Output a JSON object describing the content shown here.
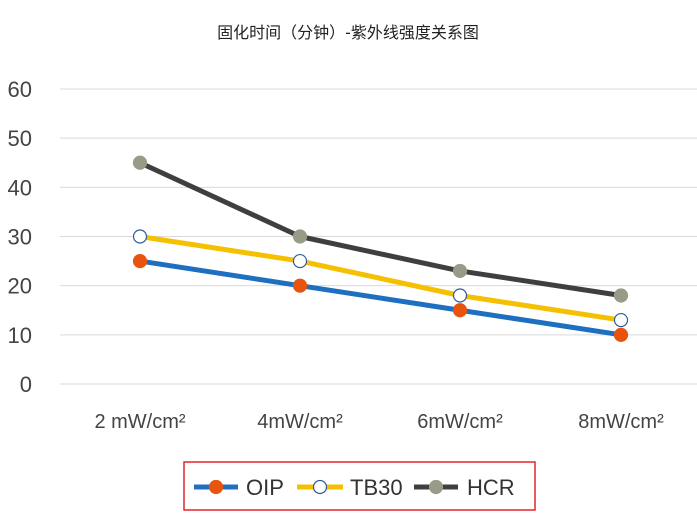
{
  "chart_data": {
    "type": "line",
    "title": "固化时间（分钟）-紫外线强度关系图",
    "xlabel": "",
    "ylabel": "",
    "categories": [
      "2 mW/cm²",
      "4mW/cm²",
      "6mW/cm²",
      "8mW/cm²"
    ],
    "ylim": [
      0,
      60
    ],
    "yticks": [
      0,
      10,
      20,
      30,
      40,
      50,
      60
    ],
    "grid": true,
    "legend_position": "bottom",
    "series": [
      {
        "name": "OIP",
        "values": [
          25,
          20,
          15,
          10
        ],
        "color": "#1f6fc1",
        "marker_fill": "#e8530e",
        "marker_stroke": "#e8530e"
      },
      {
        "name": "TB30",
        "values": [
          30,
          25,
          18,
          13
        ],
        "color": "#f5c000",
        "marker_fill": "#ffffff",
        "marker_stroke": "#2e5b9a"
      },
      {
        "name": "HCR",
        "values": [
          45,
          30,
          23,
          18
        ],
        "color": "#3f3f3f",
        "marker_fill": "#9a9a88",
        "marker_stroke": "#9a9a88"
      }
    ],
    "legend_border_color": "#e0262b"
  }
}
